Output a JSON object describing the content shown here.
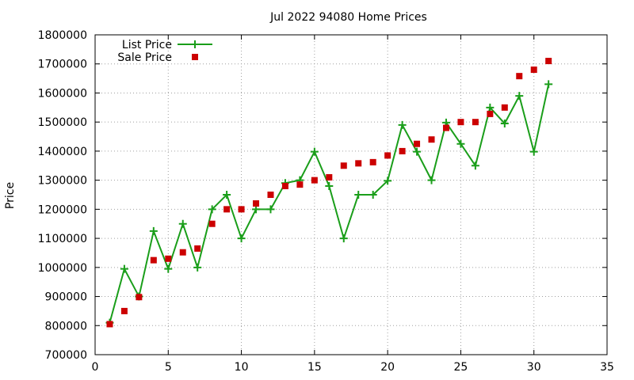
{
  "chart_data": {
    "type": "line",
    "title": "Jul 2022 94080 Home Prices",
    "xlabel": "",
    "ylabel": "Price",
    "xlim": [
      0,
      35
    ],
    "ylim": [
      700000,
      1800000
    ],
    "xticks": [
      0,
      5,
      10,
      15,
      20,
      25,
      30,
      35
    ],
    "yticks": [
      700000,
      800000,
      900000,
      1000000,
      1100000,
      1200000,
      1300000,
      1400000,
      1500000,
      1600000,
      1700000,
      1800000
    ],
    "grid": true,
    "legend": "top-left",
    "series": [
      {
        "name": "List Price",
        "style": "line-plus",
        "color": "#1a9e1a",
        "x": [
          1,
          2,
          3,
          4,
          5,
          6,
          7,
          8,
          9,
          10,
          11,
          12,
          13,
          14,
          15,
          16,
          17,
          18,
          19,
          20,
          21,
          22,
          23,
          24,
          25,
          26,
          27,
          28,
          29,
          30,
          31
        ],
        "values": [
          810000,
          995000,
          900000,
          1125000,
          995000,
          1150000,
          1000000,
          1200000,
          1250000,
          1100000,
          1200000,
          1200000,
          1290000,
          1300000,
          1398000,
          1280000,
          1100000,
          1250000,
          1250000,
          1298000,
          1490000,
          1398000,
          1300000,
          1498000,
          1425000,
          1350000,
          1550000,
          1495000,
          1590000,
          1398000,
          1630000
        ]
      },
      {
        "name": "Sale Price",
        "style": "square",
        "color": "#cc0000",
        "x": [
          1,
          2,
          3,
          4,
          5,
          6,
          7,
          8,
          9,
          10,
          11,
          12,
          13,
          14,
          15,
          16,
          17,
          18,
          19,
          20,
          21,
          22,
          23,
          24,
          25,
          26,
          27,
          28,
          29,
          30,
          31
        ],
        "values": [
          805000,
          850000,
          898000,
          1025000,
          1030000,
          1052000,
          1065000,
          1150000,
          1200000,
          1200000,
          1220000,
          1250000,
          1280000,
          1285000,
          1300000,
          1310000,
          1350000,
          1358000,
          1362000,
          1385000,
          1400000,
          1425000,
          1440000,
          1480000,
          1500000,
          1500000,
          1528000,
          1550000,
          1658000,
          1680000,
          1710000
        ]
      }
    ]
  }
}
